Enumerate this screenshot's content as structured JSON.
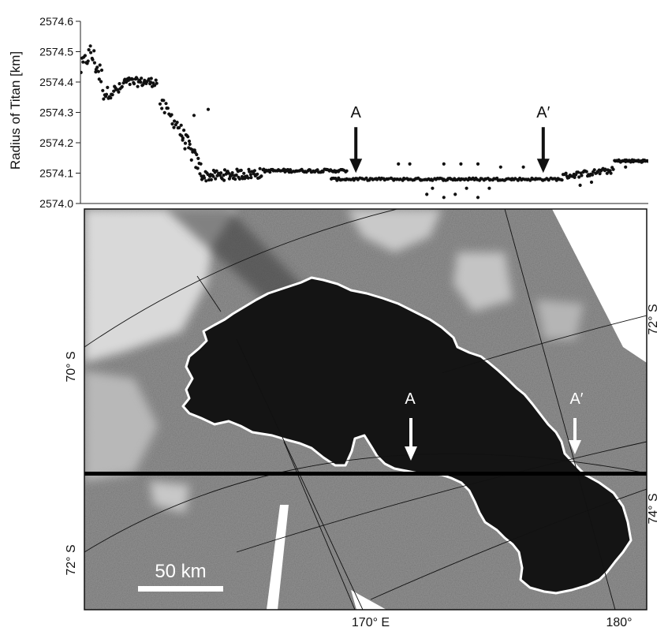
{
  "chart_data": [
    {
      "type": "scatter",
      "ylabel": "Radius of Titan [km]",
      "ylim": [
        2574.0,
        2574.6
      ],
      "yticks": [
        "2574.0",
        "2574.1",
        "2574.2",
        "2574.3",
        "2574.4",
        "2574.5",
        "2574.6"
      ],
      "xrange": [
        0,
        1
      ],
      "grid": false,
      "series": [
        {
          "segments": [
            {
              "x0": 0.0,
              "x1": 0.018,
              "y0": 2574.44,
              "y1": 2574.5,
              "spread": 0.06,
              "n": 10
            },
            {
              "x0": 0.018,
              "x1": 0.04,
              "y0": 2574.5,
              "y1": 2574.4,
              "spread": 0.08,
              "n": 14
            },
            {
              "x0": 0.04,
              "x1": 0.075,
              "y0": 2574.36,
              "y1": 2574.38,
              "spread": 0.04,
              "n": 20
            },
            {
              "x0": 0.075,
              "x1": 0.135,
              "y0": 2574.4,
              "y1": 2574.4,
              "spread": 0.03,
              "n": 40
            },
            {
              "x0": 0.14,
              "x1": 0.175,
              "y0": 2574.33,
              "y1": 2574.25,
              "spread": 0.05,
              "n": 18
            },
            {
              "x0": 0.175,
              "x1": 0.215,
              "y0": 2574.24,
              "y1": 2574.1,
              "spread": 0.06,
              "n": 30
            },
            {
              "x0": 0.215,
              "x1": 0.32,
              "y0": 2574.09,
              "y1": 2574.1,
              "spread": 0.035,
              "n": 70
            },
            {
              "x0": 0.32,
              "x1": 0.47,
              "y0": 2574.108,
              "y1": 2574.108,
              "spread": 0.01,
              "n": 70
            },
            {
              "x0": 0.44,
              "x1": 0.85,
              "y0": 2574.08,
              "y1": 2574.08,
              "spread": 0.008,
              "n": 160
            },
            {
              "x0": 0.85,
              "x1": 0.94,
              "y0": 2574.09,
              "y1": 2574.11,
              "spread": 0.02,
              "n": 45
            },
            {
              "x0": 0.94,
              "x1": 1.0,
              "y0": 2574.14,
              "y1": 2574.14,
              "spread": 0.008,
              "n": 40
            }
          ],
          "outliers": [
            {
              "x": 0.225,
              "y": 2574.31
            },
            {
              "x": 0.2,
              "y": 2574.29
            },
            {
              "x": 0.61,
              "y": 2574.03
            },
            {
              "x": 0.64,
              "y": 2574.02
            },
            {
              "x": 0.66,
              "y": 2574.03
            },
            {
              "x": 0.7,
              "y": 2574.02
            },
            {
              "x": 0.62,
              "y": 2574.05
            },
            {
              "x": 0.68,
              "y": 2574.05
            },
            {
              "x": 0.72,
              "y": 2574.05
            },
            {
              "x": 0.56,
              "y": 2574.13
            },
            {
              "x": 0.58,
              "y": 2574.13
            },
            {
              "x": 0.64,
              "y": 2574.13
            },
            {
              "x": 0.67,
              "y": 2574.13
            },
            {
              "x": 0.7,
              "y": 2574.13
            },
            {
              "x": 0.74,
              "y": 2574.12
            },
            {
              "x": 0.78,
              "y": 2574.12
            },
            {
              "x": 0.88,
              "y": 2574.06
            },
            {
              "x": 0.9,
              "y": 2574.07
            },
            {
              "x": 0.96,
              "y": 2574.12
            }
          ]
        }
      ],
      "annotations": [
        {
          "label": "A",
          "x": 0.485,
          "y": 2574.08
        },
        {
          "label": "A′",
          "x": 0.815,
          "y": 2574.08
        }
      ]
    },
    {
      "type": "map",
      "lat_labels": [
        "70° S",
        "72° S",
        "72° S",
        "74° S"
      ],
      "lon_labels": [
        "170° E",
        "180°"
      ],
      "scale_bar": "50 km",
      "annotations": [
        "A",
        "A′"
      ],
      "colors": {
        "lake": "#121212",
        "terrain": "#8a8a8a",
        "bright_terrain": "#dcdcdc",
        "shoreline": "#ffffff"
      }
    }
  ]
}
